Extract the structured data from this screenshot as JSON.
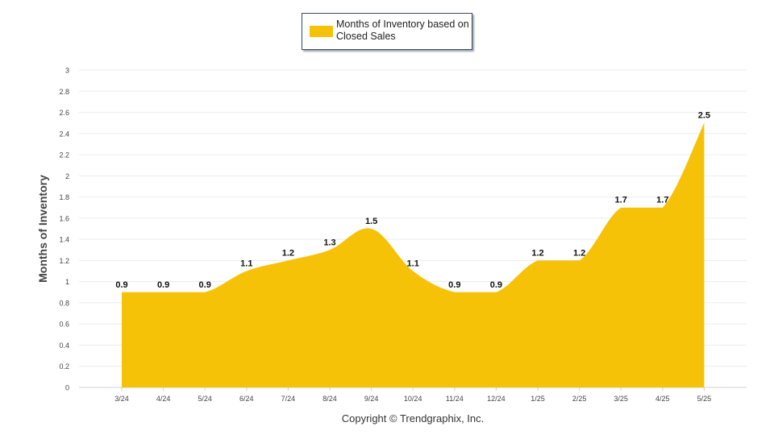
{
  "chart_data": {
    "type": "area",
    "categories": [
      "3/24",
      "4/24",
      "5/24",
      "6/24",
      "7/24",
      "8/24",
      "9/24",
      "10/24",
      "11/24",
      "12/24",
      "1/25",
      "2/25",
      "3/25",
      "4/25",
      "5/25"
    ],
    "series": [
      {
        "name": "Months of Inventory based on Closed Sales",
        "values": [
          0.9,
          0.9,
          0.9,
          1.1,
          1.2,
          1.3,
          1.5,
          1.1,
          0.9,
          0.9,
          1.2,
          1.2,
          1.7,
          1.7,
          2.5
        ],
        "color": "#F6C207"
      }
    ],
    "data_labels": [
      "0.9",
      "0.9",
      "0.9",
      "1.1",
      "1.2",
      "1.3",
      "1.5",
      "1.1",
      "0.9",
      "0.9",
      "1.2",
      "1.2",
      "1.7",
      "1.7",
      "2.5"
    ],
    "ylabel": "Months of Inventory",
    "xlabel": "",
    "ylim": [
      0,
      3
    ],
    "yticks": [
      "0",
      "0.2",
      "0.4",
      "0.6",
      "0.8",
      "1",
      "1.2",
      "1.4",
      "1.6",
      "1.8",
      "2",
      "2.2",
      "2.4",
      "2.6",
      "2.8",
      "3"
    ],
    "grid": true,
    "legend_position": "top-center"
  },
  "legend": {
    "label": "Months of Inventory based on Closed Sales"
  },
  "footer": {
    "copyright": "Copyright © Trendgraphix, Inc."
  }
}
